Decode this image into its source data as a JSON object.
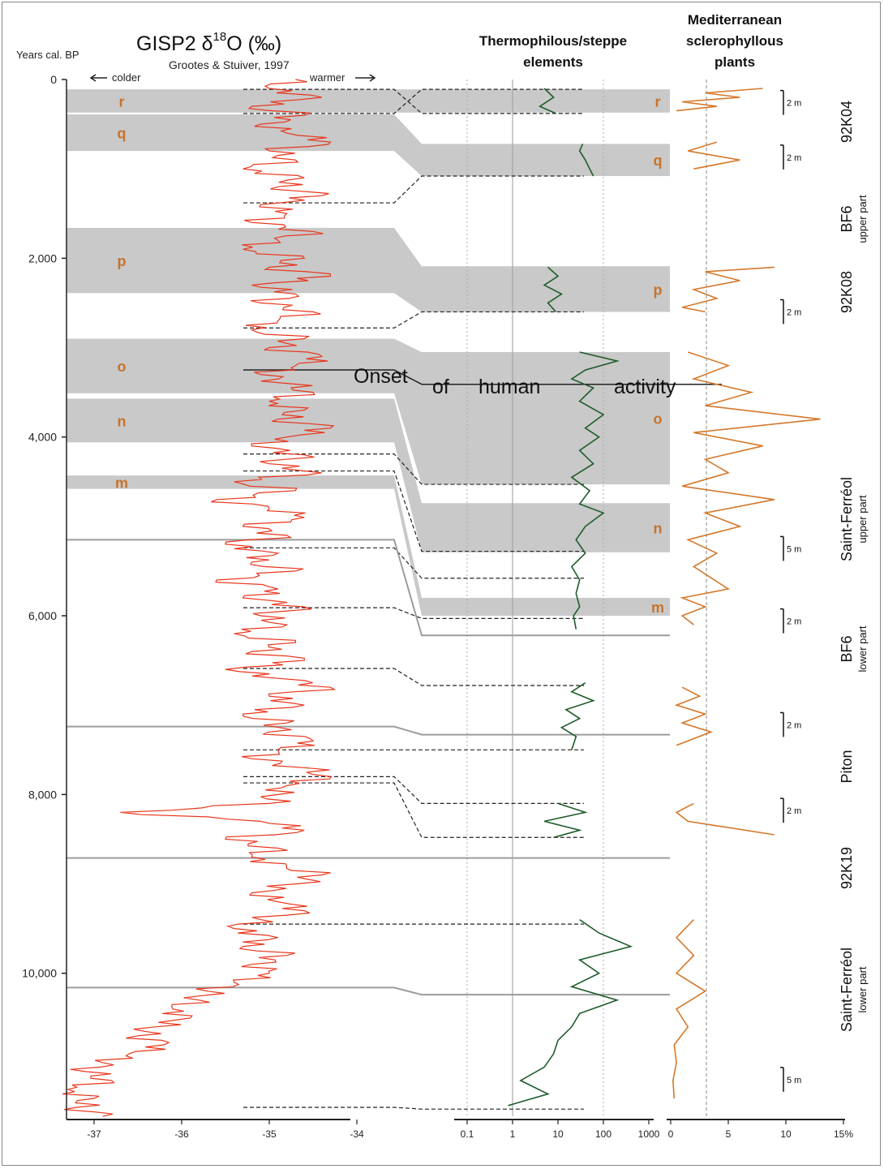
{
  "chart_data": {
    "type": "line",
    "title": "GISP2 δ18O (‰)",
    "title_parts": {
      "pre": "GISP2 δ",
      "sup": "18",
      "post": "O (‰)"
    },
    "subtitle": "Grootes & Stuiver, 1997",
    "y_axis": {
      "label": "Years cal. BP",
      "ticks": [
        "0",
        "2,000",
        "4,000",
        "6,000",
        "8,000",
        "10,000"
      ],
      "tick_values": [
        0,
        2000,
        4000,
        6000,
        8000,
        10000
      ],
      "range": [
        0,
        11600
      ],
      "reversed": true
    },
    "axes": [
      {
        "name": "GISP2",
        "ticks": [
          "-37",
          "-36",
          "-35",
          "-34"
        ],
        "tick_values": [
          -37,
          -36,
          -35,
          -34
        ],
        "range": [
          -37.6,
          -33.6
        ],
        "arrow_left": "colder",
        "arrow_right": "warmer"
      },
      {
        "name": "Thermophilous/steppe elements",
        "ticks": [
          "0.1",
          "1",
          "10",
          "100",
          "1000"
        ],
        "tick_values": [
          0.1,
          1,
          10,
          100,
          1000
        ],
        "scale": "log",
        "range": [
          0.1,
          1000
        ]
      },
      {
        "name": "Mediterranean sclerophyllous plants",
        "ticks": [
          "0",
          "5",
          "10",
          "15%"
        ],
        "tick_values": [
          0,
          5,
          10,
          15
        ],
        "range": [
          0,
          15
        ]
      }
    ],
    "panel_titles": {
      "thermo": [
        "Thermophilous/steppe",
        "elements"
      ],
      "medit": [
        "Mediterranean",
        "sclerophyllous",
        "plants"
      ]
    },
    "gisp2_series": {
      "name": "GISP2",
      "color": "#e8361c",
      "age": [
        0,
        100,
        200,
        300,
        400,
        500,
        600,
        700,
        800,
        900,
        1000,
        1100,
        1200,
        1300,
        1400,
        1500,
        1600,
        1700,
        1800,
        1900,
        2000,
        2100,
        2200,
        2300,
        2400,
        2500,
        2600,
        2700,
        2800,
        2900,
        3000,
        3100,
        3200,
        3300,
        3400,
        3500,
        3600,
        3700,
        3800,
        3900,
        4000,
        4100,
        4200,
        4300,
        4400,
        4500,
        4600,
        4700,
        4800,
        4900,
        5000,
        5100,
        5200,
        5300,
        5400,
        5500,
        5600,
        5700,
        5800,
        5900,
        6000,
        6100,
        6200,
        6300,
        6400,
        6500,
        6600,
        6700,
        6800,
        6900,
        7000,
        7100,
        7200,
        7300,
        7400,
        7500,
        7600,
        7700,
        7800,
        7900,
        8000,
        8100,
        8200,
        8300,
        8400,
        8500,
        8600,
        8700,
        8800,
        8900,
        9000,
        9100,
        9200,
        9300,
        9400,
        9500,
        9600,
        9700,
        9800,
        9900,
        10000,
        10100,
        10200,
        10300,
        10400,
        10500,
        10600,
        10700,
        10800,
        10900,
        11000,
        11100,
        11200,
        11300,
        11400,
        11500,
        11600
      ],
      "d18o": [
        -34.7,
        -35.0,
        -34.4,
        -35.2,
        -34.6,
        -35.1,
        -34.8,
        -34.3,
        -35.0,
        -34.7,
        -35.3,
        -34.6,
        -34.9,
        -34.4,
        -35.1,
        -34.8,
        -35.2,
        -34.5,
        -34.9,
        -35.3,
        -34.6,
        -35.0,
        -34.3,
        -35.2,
        -34.7,
        -35.1,
        -34.5,
        -34.9,
        -35.2,
        -34.6,
        -35.0,
        -34.4,
        -34.7,
        -35.1,
        -34.8,
        -34.5,
        -35.0,
        -34.6,
        -34.9,
        -34.3,
        -34.8,
        -35.2,
        -34.6,
        -35.0,
        -34.4,
        -35.4,
        -34.7,
        -35.6,
        -35.0,
        -34.6,
        -35.3,
        -34.8,
        -35.5,
        -34.9,
        -35.2,
        -34.7,
        -35.6,
        -34.9,
        -35.3,
        -34.6,
        -35.1,
        -34.8,
        -35.4,
        -34.7,
        -35.2,
        -34.6,
        -35.5,
        -34.9,
        -34.3,
        -35.0,
        -34.6,
        -35.3,
        -34.8,
        -35.0,
        -34.5,
        -34.9,
        -35.2,
        -34.6,
        -34.3,
        -34.8,
        -34.9,
        -35.0,
        -36.7,
        -35.1,
        -34.6,
        -35.5,
        -34.9,
        -35.2,
        -34.8,
        -34.4,
        -34.7,
        -35.2,
        -34.9,
        -34.6,
        -35.1,
        -35.4,
        -34.9,
        -35.3,
        -34.8,
        -35.2,
        -35.0,
        -35.4,
        -35.7,
        -35.8,
        -36.1,
        -35.9,
        -36.3,
        -36.5,
        -36.2,
        -36.6,
        -36.9,
        -37.1,
        -36.8,
        -37.3,
        -37.0,
        -37.2,
        -36.9
      ],
      "note_uncertain": "values estimated from the trace"
    },
    "thermo_series": {
      "name": "Thermophilous/steppe",
      "color": "#1f5c2a",
      "age": [
        100,
        200,
        300,
        380,
        720,
        800,
        900,
        1000,
        1080,
        2100,
        2200,
        2300,
        2400,
        2500,
        2600,
        3050,
        3150,
        3250,
        3350,
        3450,
        3600,
        3750,
        3900,
        4000,
        4150,
        4300,
        4450,
        4600,
        4750,
        4850,
        5000,
        5150,
        5300,
        5450,
        5600,
        5750,
        5900,
        6000,
        6150,
        6750,
        6850,
        6950,
        7050,
        7150,
        7250,
        7350,
        7500,
        8100,
        8200,
        8300,
        8400,
        8480,
        9400,
        9550,
        9700,
        9850,
        10000,
        10150,
        10300,
        10450,
        10600,
        10750,
        10900,
        11050,
        11200,
        11350,
        11480
      ],
      "values": [
        5,
        8,
        4,
        9,
        35,
        30,
        40,
        50,
        60,
        6,
        10,
        5,
        12,
        6,
        9,
        30,
        200,
        40,
        20,
        60,
        30,
        100,
        40,
        80,
        30,
        60,
        20,
        50,
        30,
        100,
        40,
        25,
        40,
        20,
        30,
        25,
        30,
        22,
        25,
        40,
        20,
        60,
        15,
        30,
        12,
        25,
        20,
        10,
        40,
        5,
        30,
        8,
        30,
        80,
        400,
        30,
        80,
        20,
        200,
        30,
        20,
        10,
        8,
        5,
        1.5,
        6,
        0.8
      ]
    },
    "medit_series": {
      "name": "Mediterranean",
      "color": "#d4782a",
      "age": [
        100,
        150,
        200,
        250,
        300,
        350,
        700,
        800,
        900,
        1000,
        2100,
        2150,
        2250,
        2350,
        2450,
        2550,
        2600,
        3050,
        3200,
        3350,
        3500,
        3650,
        3800,
        3950,
        4100,
        4250,
        4400,
        4550,
        4700,
        4850,
        5000,
        5150,
        5300,
        5450,
        5700,
        5800,
        5900,
        6000,
        6100,
        6800,
        6900,
        7000,
        7100,
        7200,
        7300,
        7450,
        8100,
        8200,
        8300,
        8450,
        9400,
        9600,
        9800,
        10000,
        10200,
        10400,
        10600,
        10800,
        11000,
        11200,
        11400
      ],
      "values": [
        8,
        3,
        6,
        1,
        4,
        0.5,
        4,
        1.5,
        6,
        2,
        9,
        3,
        6,
        2,
        4,
        1,
        3,
        1.5,
        5,
        2,
        7,
        3,
        13,
        2,
        8,
        3,
        5,
        1,
        9,
        3,
        6,
        1.5,
        4,
        2,
        5,
        1,
        3,
        1,
        2,
        1,
        2.5,
        0.5,
        3,
        1,
        3.5,
        0.5,
        2,
        0.5,
        1.5,
        9,
        2,
        0.5,
        2,
        0.5,
        3,
        0.5,
        1.5,
        0.3,
        0.5,
        0.2,
        0.3
      ]
    },
    "zones": [
      {
        "label": "r",
        "gisp": [
          110,
          370
        ],
        "thermo": [
          110,
          370
        ]
      },
      {
        "label": "q",
        "gisp": [
          390,
          800
        ],
        "thermo": [
          720,
          1080
        ]
      },
      {
        "label": "p",
        "gisp": [
          1660,
          2390
        ],
        "thermo": [
          2090,
          2600
        ]
      },
      {
        "label": "o",
        "gisp": [
          2900,
          3510
        ],
        "thermo": [
          3050,
          4530
        ]
      },
      {
        "label": "n",
        "gisp": [
          3570,
          4060
        ],
        "thermo": [
          4740,
          5290
        ]
      },
      {
        "label": "m",
        "gisp": [
          4430,
          4580
        ],
        "thermo": [
          5800,
          6000
        ]
      }
    ],
    "record_labels": [
      {
        "name": "92K04",
        "sub": ""
      },
      {
        "name": "BF6",
        "sub": "upper part"
      },
      {
        "name": "92K08",
        "sub": ""
      },
      {
        "name": "Saint-Ferréol",
        "sub": "upper part"
      },
      {
        "name": "BF6",
        "sub": "lower part"
      },
      {
        "name": "Piton",
        "sub": ""
      },
      {
        "name": "92K19",
        "sub": ""
      },
      {
        "name": "Saint-Ferréol",
        "sub": "lower part"
      }
    ],
    "scale_bars": [
      "2 m",
      "2 m",
      "2 m",
      "5 m",
      "2 m",
      "2 m",
      "2 m",
      "5 m"
    ],
    "annotation": {
      "words": [
        "Onset",
        "of",
        "human",
        "activity"
      ]
    }
  }
}
